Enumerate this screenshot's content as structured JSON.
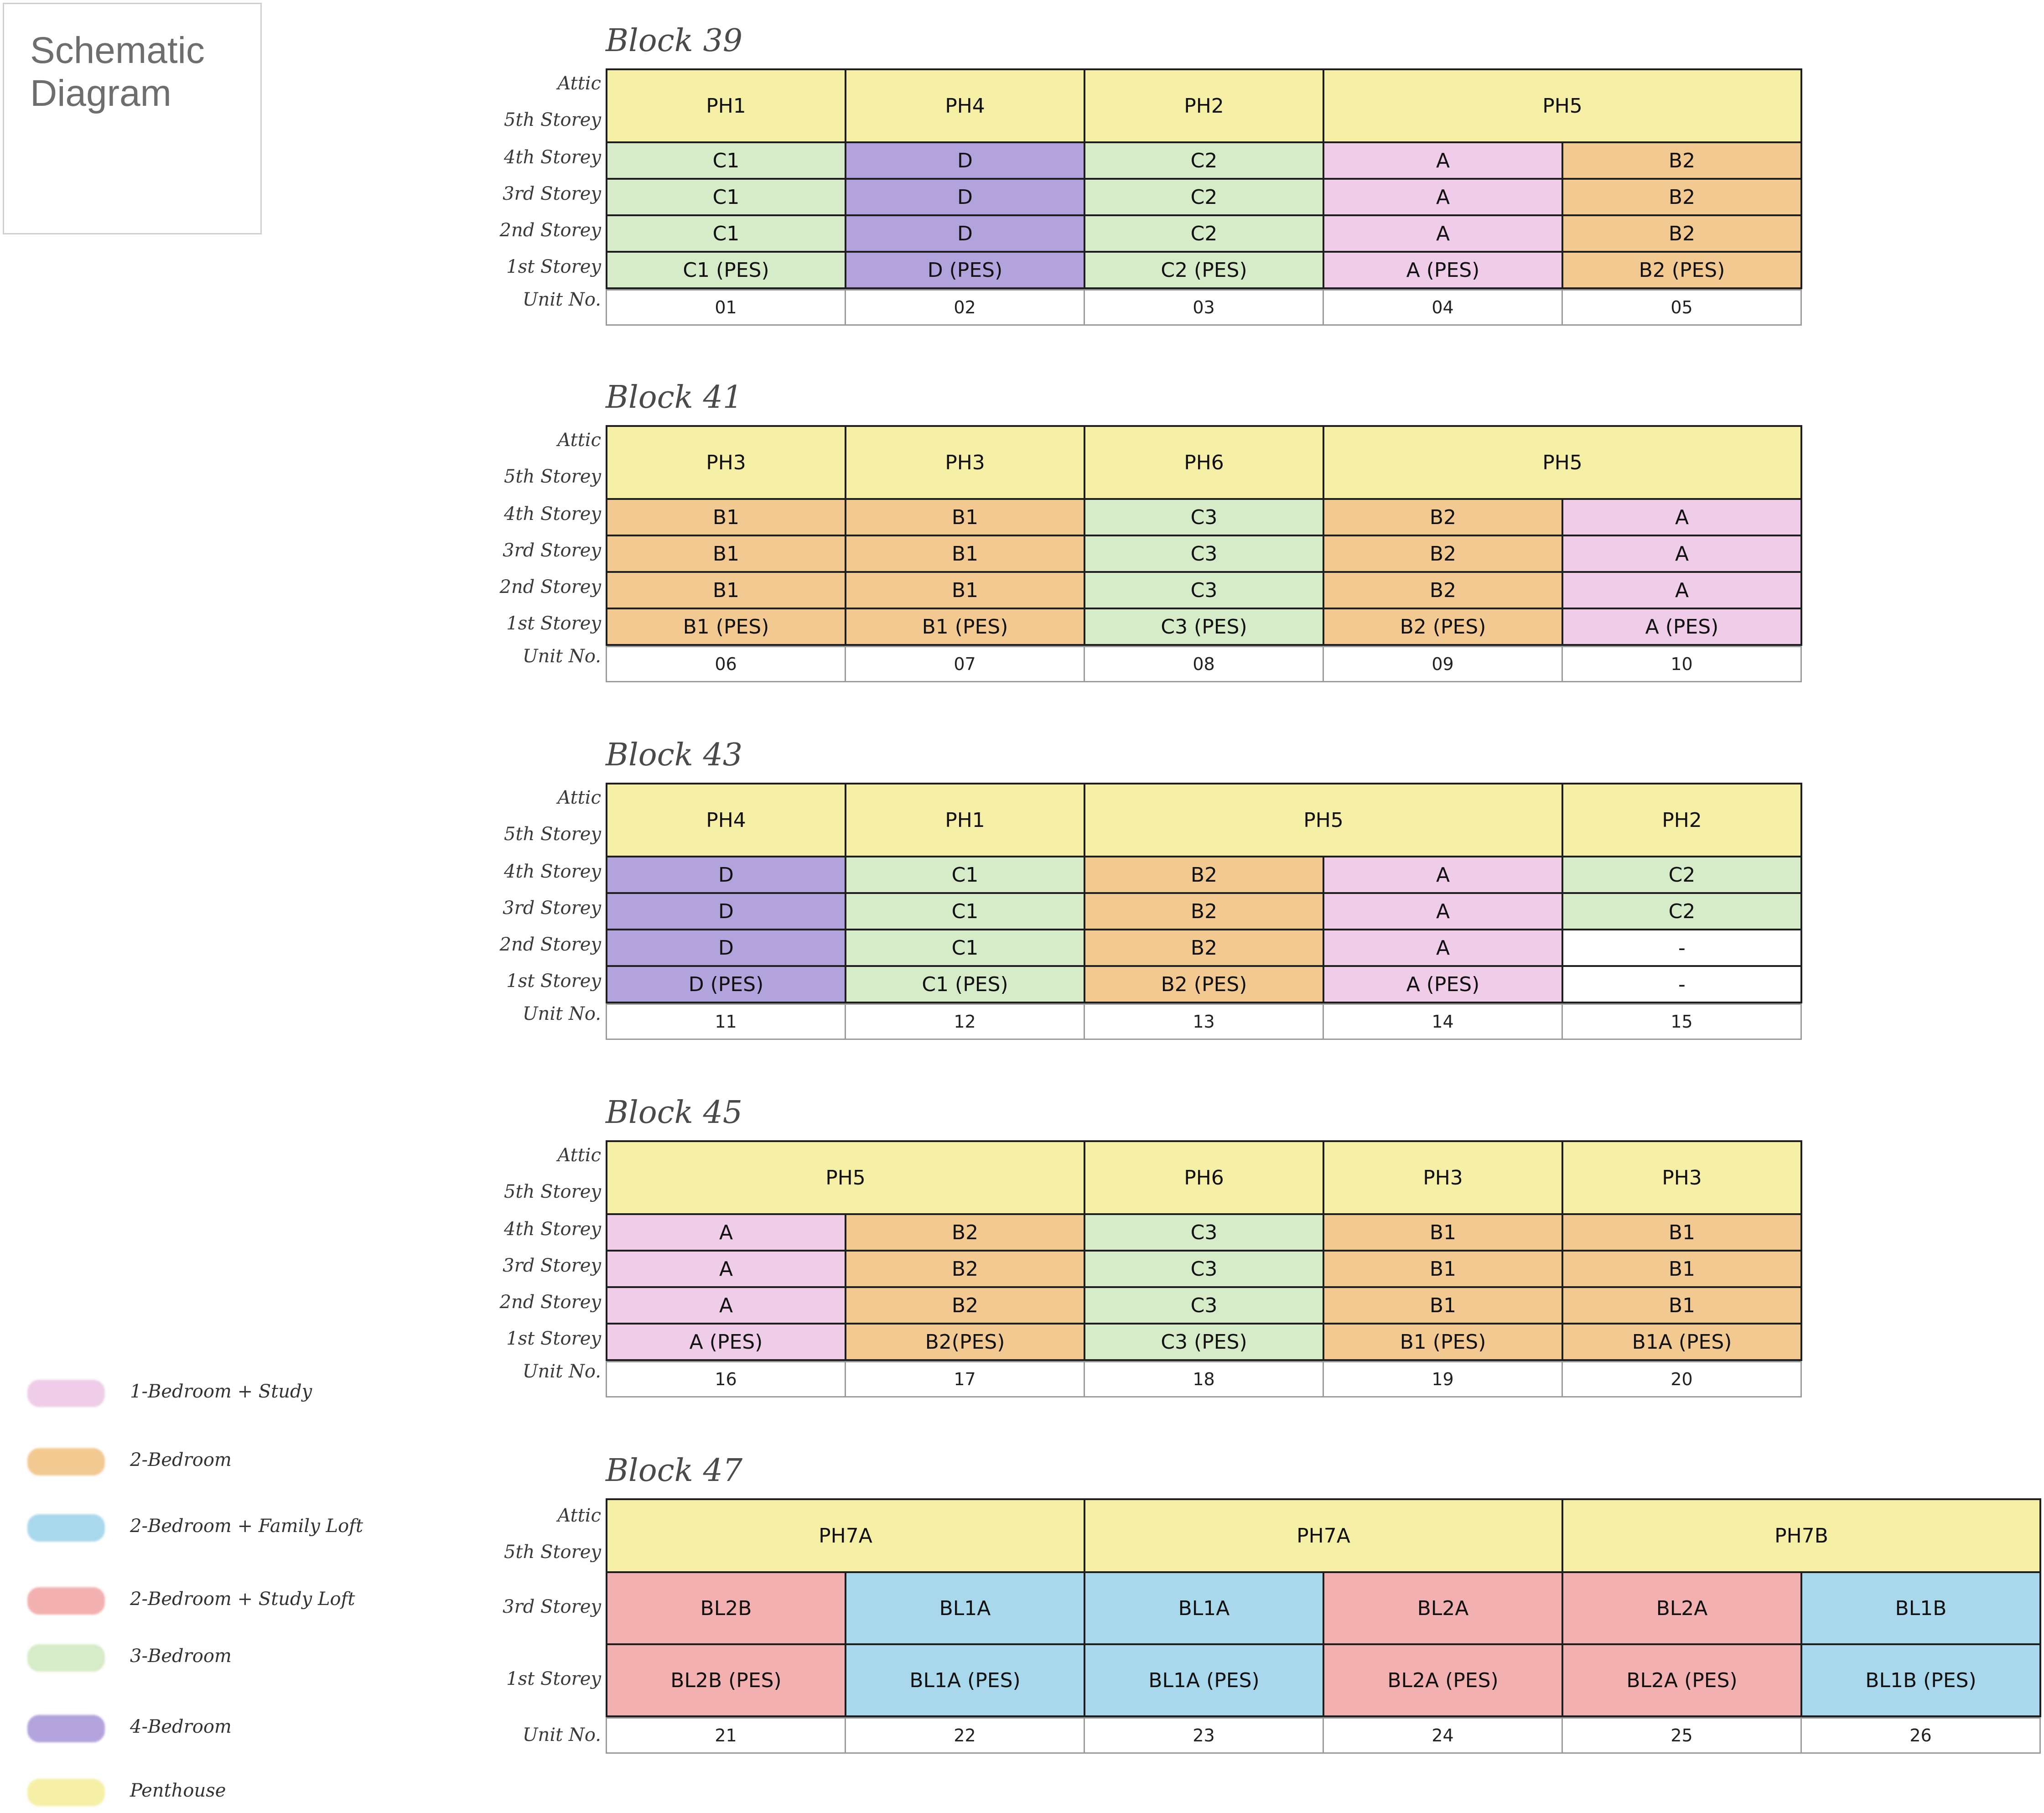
{
  "title": "Schematic\nDiagram",
  "colors": {
    "1br_study": "#efcde8",
    "2br": "#f3c992",
    "2br_family_loft": "#a9d8ec",
    "2br_study_loft": "#f3b0b0",
    "3br": "#d6ebc8",
    "4br": "#b3a3dc",
    "penthouse": "#f6f0a7",
    "empty": "#ffffff"
  },
  "row_labels": {
    "attic": "Attic",
    "s5": "5th Storey",
    "s4": "4th Storey",
    "s3": "3rd Storey",
    "s2": "2nd Storey",
    "s1": "1st Storey",
    "unit": "Unit No."
  },
  "blocks": [
    {
      "name": "Block 39",
      "rows": [
        [
          {
            "t": "PH1",
            "span": 1,
            "c": "penthouse"
          },
          {
            "t": "PH4",
            "span": 1,
            "c": "penthouse"
          },
          {
            "t": "PH2",
            "span": 1,
            "c": "penthouse"
          },
          {
            "t": "PH5",
            "span": 2,
            "c": "penthouse"
          }
        ],
        [
          {
            "t": "C1",
            "c": "3br"
          },
          {
            "t": "D",
            "c": "4br"
          },
          {
            "t": "C2",
            "c": "3br"
          },
          {
            "t": "A",
            "c": "1br_study"
          },
          {
            "t": "B2",
            "c": "2br"
          }
        ],
        [
          {
            "t": "C1",
            "c": "3br"
          },
          {
            "t": "D",
            "c": "4br"
          },
          {
            "t": "C2",
            "c": "3br"
          },
          {
            "t": "A",
            "c": "1br_study"
          },
          {
            "t": "B2",
            "c": "2br"
          }
        ],
        [
          {
            "t": "C1",
            "c": "3br"
          },
          {
            "t": "D",
            "c": "4br"
          },
          {
            "t": "C2",
            "c": "3br"
          },
          {
            "t": "A",
            "c": "1br_study"
          },
          {
            "t": "B2",
            "c": "2br"
          }
        ],
        [
          {
            "t": "C1 (PES)",
            "c": "3br"
          },
          {
            "t": "D (PES)",
            "c": "4br"
          },
          {
            "t": "C2 (PES)",
            "c": "3br"
          },
          {
            "t": "A (PES)",
            "c": "1br_study"
          },
          {
            "t": "B2 (PES)",
            "c": "2br"
          }
        ]
      ],
      "units": [
        "01",
        "02",
        "03",
        "04",
        "05"
      ]
    },
    {
      "name": "Block 41",
      "rows": [
        [
          {
            "t": "PH3",
            "span": 1,
            "c": "penthouse"
          },
          {
            "t": "PH3",
            "span": 1,
            "c": "penthouse"
          },
          {
            "t": "PH6",
            "span": 1,
            "c": "penthouse"
          },
          {
            "t": "PH5",
            "span": 2,
            "c": "penthouse"
          }
        ],
        [
          {
            "t": "B1",
            "c": "2br"
          },
          {
            "t": "B1",
            "c": "2br"
          },
          {
            "t": "C3",
            "c": "3br"
          },
          {
            "t": "B2",
            "c": "2br"
          },
          {
            "t": "A",
            "c": "1br_study"
          }
        ],
        [
          {
            "t": "B1",
            "c": "2br"
          },
          {
            "t": "B1",
            "c": "2br"
          },
          {
            "t": "C3",
            "c": "3br"
          },
          {
            "t": "B2",
            "c": "2br"
          },
          {
            "t": "A",
            "c": "1br_study"
          }
        ],
        [
          {
            "t": "B1",
            "c": "2br"
          },
          {
            "t": "B1",
            "c": "2br"
          },
          {
            "t": "C3",
            "c": "3br"
          },
          {
            "t": "B2",
            "c": "2br"
          },
          {
            "t": "A",
            "c": "1br_study"
          }
        ],
        [
          {
            "t": "B1 (PES)",
            "c": "2br"
          },
          {
            "t": "B1 (PES)",
            "c": "2br"
          },
          {
            "t": "C3 (PES)",
            "c": "3br"
          },
          {
            "t": "B2 (PES)",
            "c": "2br"
          },
          {
            "t": "A (PES)",
            "c": "1br_study"
          }
        ]
      ],
      "units": [
        "06",
        "07",
        "08",
        "09",
        "10"
      ]
    },
    {
      "name": "Block 43",
      "rows": [
        [
          {
            "t": "PH4",
            "span": 1,
            "c": "penthouse"
          },
          {
            "t": "PH1",
            "span": 1,
            "c": "penthouse"
          },
          {
            "t": "PH5",
            "span": 2,
            "c": "penthouse"
          },
          {
            "t": "PH2",
            "span": 1,
            "c": "penthouse"
          }
        ],
        [
          {
            "t": "D",
            "c": "4br"
          },
          {
            "t": "C1",
            "c": "3br"
          },
          {
            "t": "B2",
            "c": "2br"
          },
          {
            "t": "A",
            "c": "1br_study"
          },
          {
            "t": "C2",
            "c": "3br"
          }
        ],
        [
          {
            "t": "D",
            "c": "4br"
          },
          {
            "t": "C1",
            "c": "3br"
          },
          {
            "t": "B2",
            "c": "2br"
          },
          {
            "t": "A",
            "c": "1br_study"
          },
          {
            "t": "C2",
            "c": "3br"
          }
        ],
        [
          {
            "t": "D",
            "c": "4br"
          },
          {
            "t": "C1",
            "c": "3br"
          },
          {
            "t": "B2",
            "c": "2br"
          },
          {
            "t": "A",
            "c": "1br_study"
          },
          {
            "t": "-",
            "c": "empty"
          }
        ],
        [
          {
            "t": "D (PES)",
            "c": "4br"
          },
          {
            "t": "C1 (PES)",
            "c": "3br"
          },
          {
            "t": "B2 (PES)",
            "c": "2br"
          },
          {
            "t": "A (PES)",
            "c": "1br_study"
          },
          {
            "t": "-",
            "c": "empty"
          }
        ]
      ],
      "units": [
        "11",
        "12",
        "13",
        "14",
        "15"
      ]
    },
    {
      "name": "Block 45",
      "rows": [
        [
          {
            "t": "PH5",
            "span": 2,
            "c": "penthouse"
          },
          {
            "t": "PH6",
            "span": 1,
            "c": "penthouse"
          },
          {
            "t": "PH3",
            "span": 1,
            "c": "penthouse"
          },
          {
            "t": "PH3",
            "span": 1,
            "c": "penthouse"
          }
        ],
        [
          {
            "t": "A",
            "c": "1br_study"
          },
          {
            "t": "B2",
            "c": "2br"
          },
          {
            "t": "C3",
            "c": "3br"
          },
          {
            "t": "B1",
            "c": "2br"
          },
          {
            "t": "B1",
            "c": "2br"
          }
        ],
        [
          {
            "t": "A",
            "c": "1br_study"
          },
          {
            "t": "B2",
            "c": "2br"
          },
          {
            "t": "C3",
            "c": "3br"
          },
          {
            "t": "B1",
            "c": "2br"
          },
          {
            "t": "B1",
            "c": "2br"
          }
        ],
        [
          {
            "t": "A",
            "c": "1br_study"
          },
          {
            "t": "B2",
            "c": "2br"
          },
          {
            "t": "C3",
            "c": "3br"
          },
          {
            "t": "B1",
            "c": "2br"
          },
          {
            "t": "B1",
            "c": "2br"
          }
        ],
        [
          {
            "t": "A (PES)",
            "c": "1br_study"
          },
          {
            "t": "B2(PES)",
            "c": "2br"
          },
          {
            "t": "C3 (PES)",
            "c": "3br"
          },
          {
            "t": "B1 (PES)",
            "c": "2br"
          },
          {
            "t": "B1A (PES)",
            "c": "2br"
          }
        ]
      ],
      "units": [
        "16",
        "17",
        "18",
        "19",
        "20"
      ]
    },
    {
      "name": "Block 47",
      "rows": [
        [
          {
            "t": "PH7A",
            "span": 2,
            "c": "penthouse"
          },
          {
            "t": "PH7A",
            "span": 2,
            "c": "penthouse"
          },
          {
            "t": "PH7B",
            "span": 2,
            "c": "penthouse"
          }
        ],
        [
          {
            "t": "BL2B",
            "c": "2br_study_loft"
          },
          {
            "t": "BL1A",
            "c": "2br_family_loft"
          },
          {
            "t": "BL1A",
            "c": "2br_family_loft"
          },
          {
            "t": "BL2A",
            "c": "2br_study_loft"
          },
          {
            "t": "BL2A",
            "c": "2br_study_loft"
          },
          {
            "t": "BL1B",
            "c": "2br_family_loft"
          }
        ],
        [
          {
            "t": "BL2B (PES)",
            "c": "2br_study_loft"
          },
          {
            "t": "BL1A (PES)",
            "c": "2br_family_loft"
          },
          {
            "t": "BL1A (PES)",
            "c": "2br_family_loft"
          },
          {
            "t": "BL2A (PES)",
            "c": "2br_study_loft"
          },
          {
            "t": "BL2A (PES)",
            "c": "2br_study_loft"
          },
          {
            "t": "BL1B (PES)",
            "c": "2br_family_loft"
          }
        ]
      ],
      "units": [
        "21",
        "22",
        "23",
        "24",
        "25",
        "26"
      ]
    }
  ],
  "legend": [
    {
      "label": "1-Bedroom + Study",
      "c": "1br_study"
    },
    {
      "label": "2-Bedroom",
      "c": "2br"
    },
    {
      "label": "2-Bedroom + Family Loft",
      "c": "2br_family_loft"
    },
    {
      "label": "2-Bedroom + Study Loft",
      "c": "2br_study_loft"
    },
    {
      "label": "3-Bedroom",
      "c": "3br"
    },
    {
      "label": "4-Bedroom",
      "c": "4br"
    },
    {
      "label": "Penthouse",
      "c": "penthouse"
    }
  ]
}
